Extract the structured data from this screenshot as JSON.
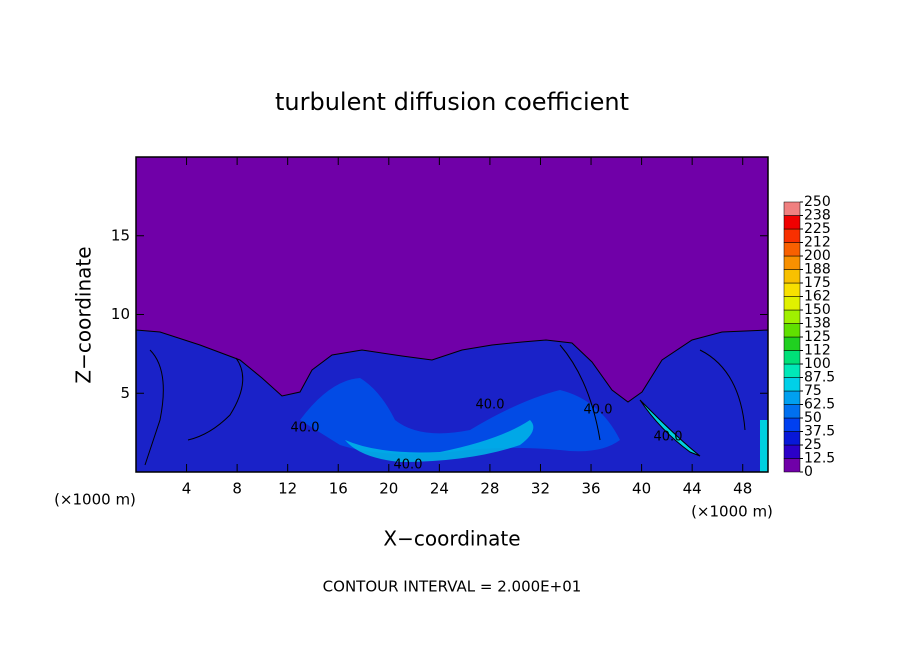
{
  "chart_data": {
    "type": "contour",
    "title": "turbulent diffusion coefficient",
    "x_label": "X−coordinate",
    "y_label": "Z−coordinate",
    "x_unit": "(×1000 m)",
    "x_unit_right": "(×1000 m)",
    "footer": "CONTOUR INTERVAL = 2.000E+01",
    "xlim": [
      0,
      50
    ],
    "xticks": [
      4,
      8,
      12,
      16,
      20,
      24,
      28,
      32,
      36,
      40,
      44,
      48
    ],
    "ylim": [
      0,
      20
    ],
    "yticks": [
      5,
      10,
      15
    ],
    "contour_labels": [
      "40.0",
      "40.0",
      "40.0",
      "40.0",
      "40.0"
    ],
    "colorbar": {
      "ticks": [
        0,
        12.5,
        25,
        37.5,
        50,
        62.5,
        75,
        87.5,
        100,
        {
          "value": 112.5,
          "label": "112"
        },
        125,
        {
          "value": 137.5,
          "label": "138"
        },
        150,
        {
          "value": 162.5,
          "label": "162"
        },
        175,
        {
          "value": 187.5,
          "label": "188"
        },
        200,
        {
          "value": 212.5,
          "label": "212"
        },
        225,
        {
          "value": 237.5,
          "label": "238"
        },
        250
      ],
      "colors": [
        "#7000a8",
        "#2c00c8",
        "#0818d8",
        "#0040f0",
        "#0070f0",
        "#00a0f0",
        "#00d0e8",
        "#00e8b8",
        "#00e078",
        "#20d020",
        "#60e000",
        "#a0f000",
        "#e0f000",
        "#f8e000",
        "#f8c000",
        "#f89000",
        "#f86000",
        "#f83000",
        "#f00000",
        "#f08080"
      ]
    }
  }
}
